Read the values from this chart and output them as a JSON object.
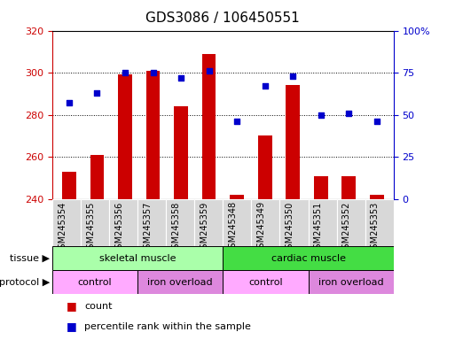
{
  "title": "GDS3086 / 106450551",
  "samples": [
    "GSM245354",
    "GSM245355",
    "GSM245356",
    "GSM245357",
    "GSM245358",
    "GSM245359",
    "GSM245348",
    "GSM245349",
    "GSM245350",
    "GSM245351",
    "GSM245352",
    "GSM245353"
  ],
  "counts": [
    253,
    261,
    299,
    301,
    284,
    309,
    242,
    270,
    294,
    251,
    251,
    242
  ],
  "percentiles": [
    57,
    63,
    75,
    75,
    72,
    76,
    46,
    67,
    73,
    50,
    51,
    46
  ],
  "ylim_left": [
    240,
    320
  ],
  "ylim_right": [
    0,
    100
  ],
  "yticks_left": [
    240,
    260,
    280,
    300,
    320
  ],
  "yticks_right": [
    0,
    25,
    50,
    75,
    100
  ],
  "ytick_labels_right": [
    "0",
    "25",
    "50",
    "75",
    "100%"
  ],
  "bar_color": "#cc0000",
  "dot_color": "#0000cc",
  "bar_width": 0.5,
  "tissue_groups": [
    {
      "label": "skeletal muscle",
      "start": 0,
      "end": 6,
      "color": "#aaffaa"
    },
    {
      "label": "cardiac muscle",
      "start": 6,
      "end": 12,
      "color": "#44dd44"
    }
  ],
  "protocol_groups": [
    {
      "label": "control",
      "start": 0,
      "end": 3,
      "color": "#ffaaff"
    },
    {
      "label": "iron overload",
      "start": 3,
      "end": 6,
      "color": "#dd88dd"
    },
    {
      "label": "control",
      "start": 6,
      "end": 9,
      "color": "#ffaaff"
    },
    {
      "label": "iron overload",
      "start": 9,
      "end": 12,
      "color": "#dd88dd"
    }
  ],
  "bar_color_hex": "#cc0000",
  "dot_color_hex": "#0000cc",
  "left_axis_color": "#cc0000",
  "right_axis_color": "#0000cc",
  "bg_color": "#ffffff",
  "title_fontsize": 11,
  "axis_label_fontsize": 8,
  "sample_fontsize": 7,
  "row_fontsize": 8,
  "legend_fontsize": 8
}
